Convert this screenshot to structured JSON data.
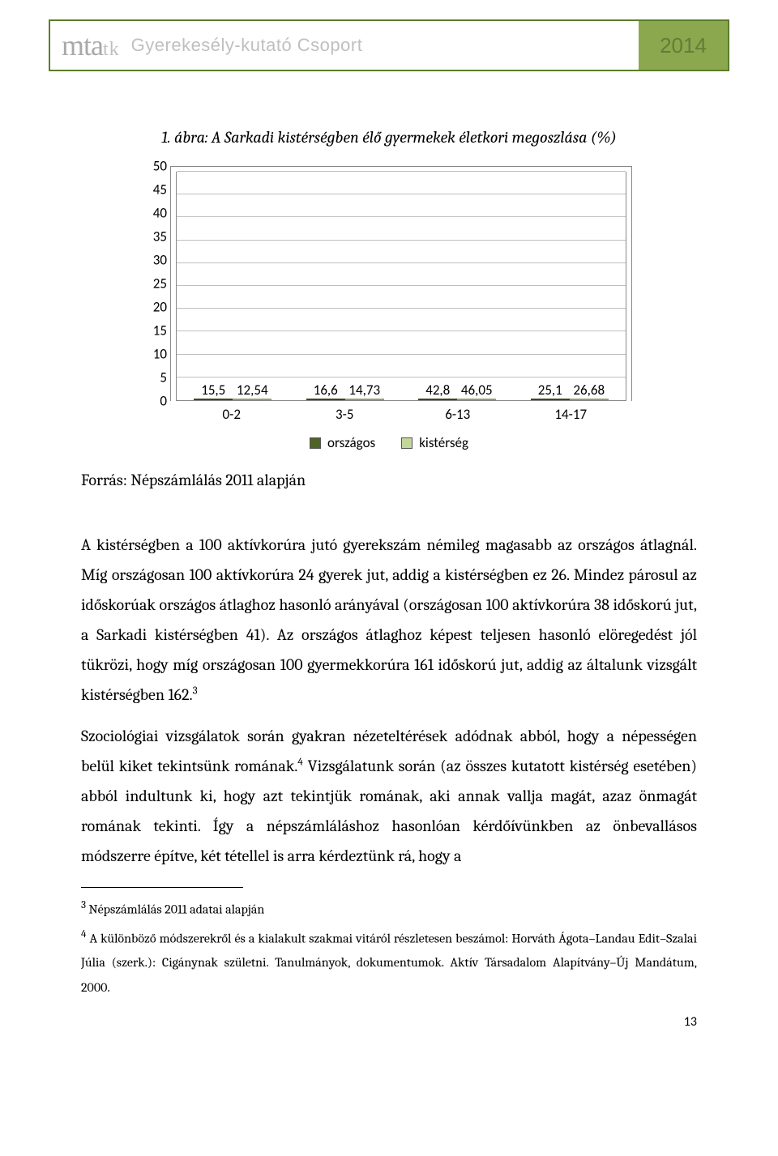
{
  "header": {
    "logo_main": "mta",
    "logo_sub": "tk",
    "title": "Gyerekesély-kutató Csoport",
    "year": "2014"
  },
  "figure": {
    "caption": "1. ábra: A Sarkadi kistérségben élő gyermekek életkori megoszlása (%)",
    "type": "bar",
    "categories": [
      "0-2",
      "3-5",
      "6-13",
      "14-17"
    ],
    "series": [
      {
        "name": "országos",
        "color": "#4f6228",
        "values": [
          15.5,
          16.6,
          42.8,
          25.1
        ],
        "labels": [
          "15,5",
          "16,6",
          "42,8",
          "25,1"
        ]
      },
      {
        "name": "kistérség",
        "color": "#c3d69b",
        "values": [
          12.54,
          14.73,
          46.05,
          26.68
        ],
        "labels": [
          "12,54",
          "14,73",
          "46,05",
          "26,68"
        ]
      }
    ],
    "ylim": [
      0,
      50
    ],
    "ytick_step": 5,
    "yticks": [
      0,
      5,
      10,
      15,
      20,
      25,
      30,
      35,
      40,
      45,
      50
    ],
    "bar_width": 0.45,
    "background_color": "#ffffff",
    "grid_color": "#bfbfbf",
    "border_color": "#888888",
    "label_fontsize": 17,
    "font_family": "Calibri"
  },
  "source": "Forrás: Népszámlálás 2011 alapján",
  "paragraphs": {
    "p1": "A kistérségben a 100 aktívkorúra jutó gyerekszám némileg magasabb az országos átlagnál. Míg országosan 100 aktívkorúra 24 gyerek jut, addig a kistérségben ez 26. Mindez párosul az időskorúak országos átlaghoz hasonló arányával (országosan 100 aktívkorúra 38 időskorú jut, a Sarkadi kistérségben 41). Az országos átlaghoz képest teljesen hasonló elöregedést jól tükrözi, hogy míg országosan 100 gyermekkorúra 161 időskorú jut, addig az általunk vizsgált kistérségben 162.",
    "p1_sup": "3",
    "p2": "Szociológiai vizsgálatok során gyakran nézeteltérések adódnak abból, hogy a népességen belül kiket tekintsünk romának.",
    "p2_sup": "4",
    "p2b": " Vizsgálatunk során (az összes kutatott kistérség esetében) abból indultunk ki, hogy azt tekintjük romának, aki annak vallja magát, azaz önmagát romának tekinti. Így a népszámláláshoz hasonlóan kérdőívünkben az önbevallásos módszerre építve, két tétellel is arra kérdeztünk rá, hogy a"
  },
  "footnotes": {
    "f3_num": "3",
    "f3": " Népszámlálás 2011 adatai alapján",
    "f4_num": "4",
    "f4": " A különböző módszerekről és a kialakult szakmai vitáról részletesen beszámol: Horváth Ágota–Landau Edit–Szalai Júlia (szerk.): Cigánynak születni. Tanulmányok, dokumentumok. Aktív Társadalom Alapítvány–Új Mandátum, 2000."
  },
  "page_number": "13"
}
